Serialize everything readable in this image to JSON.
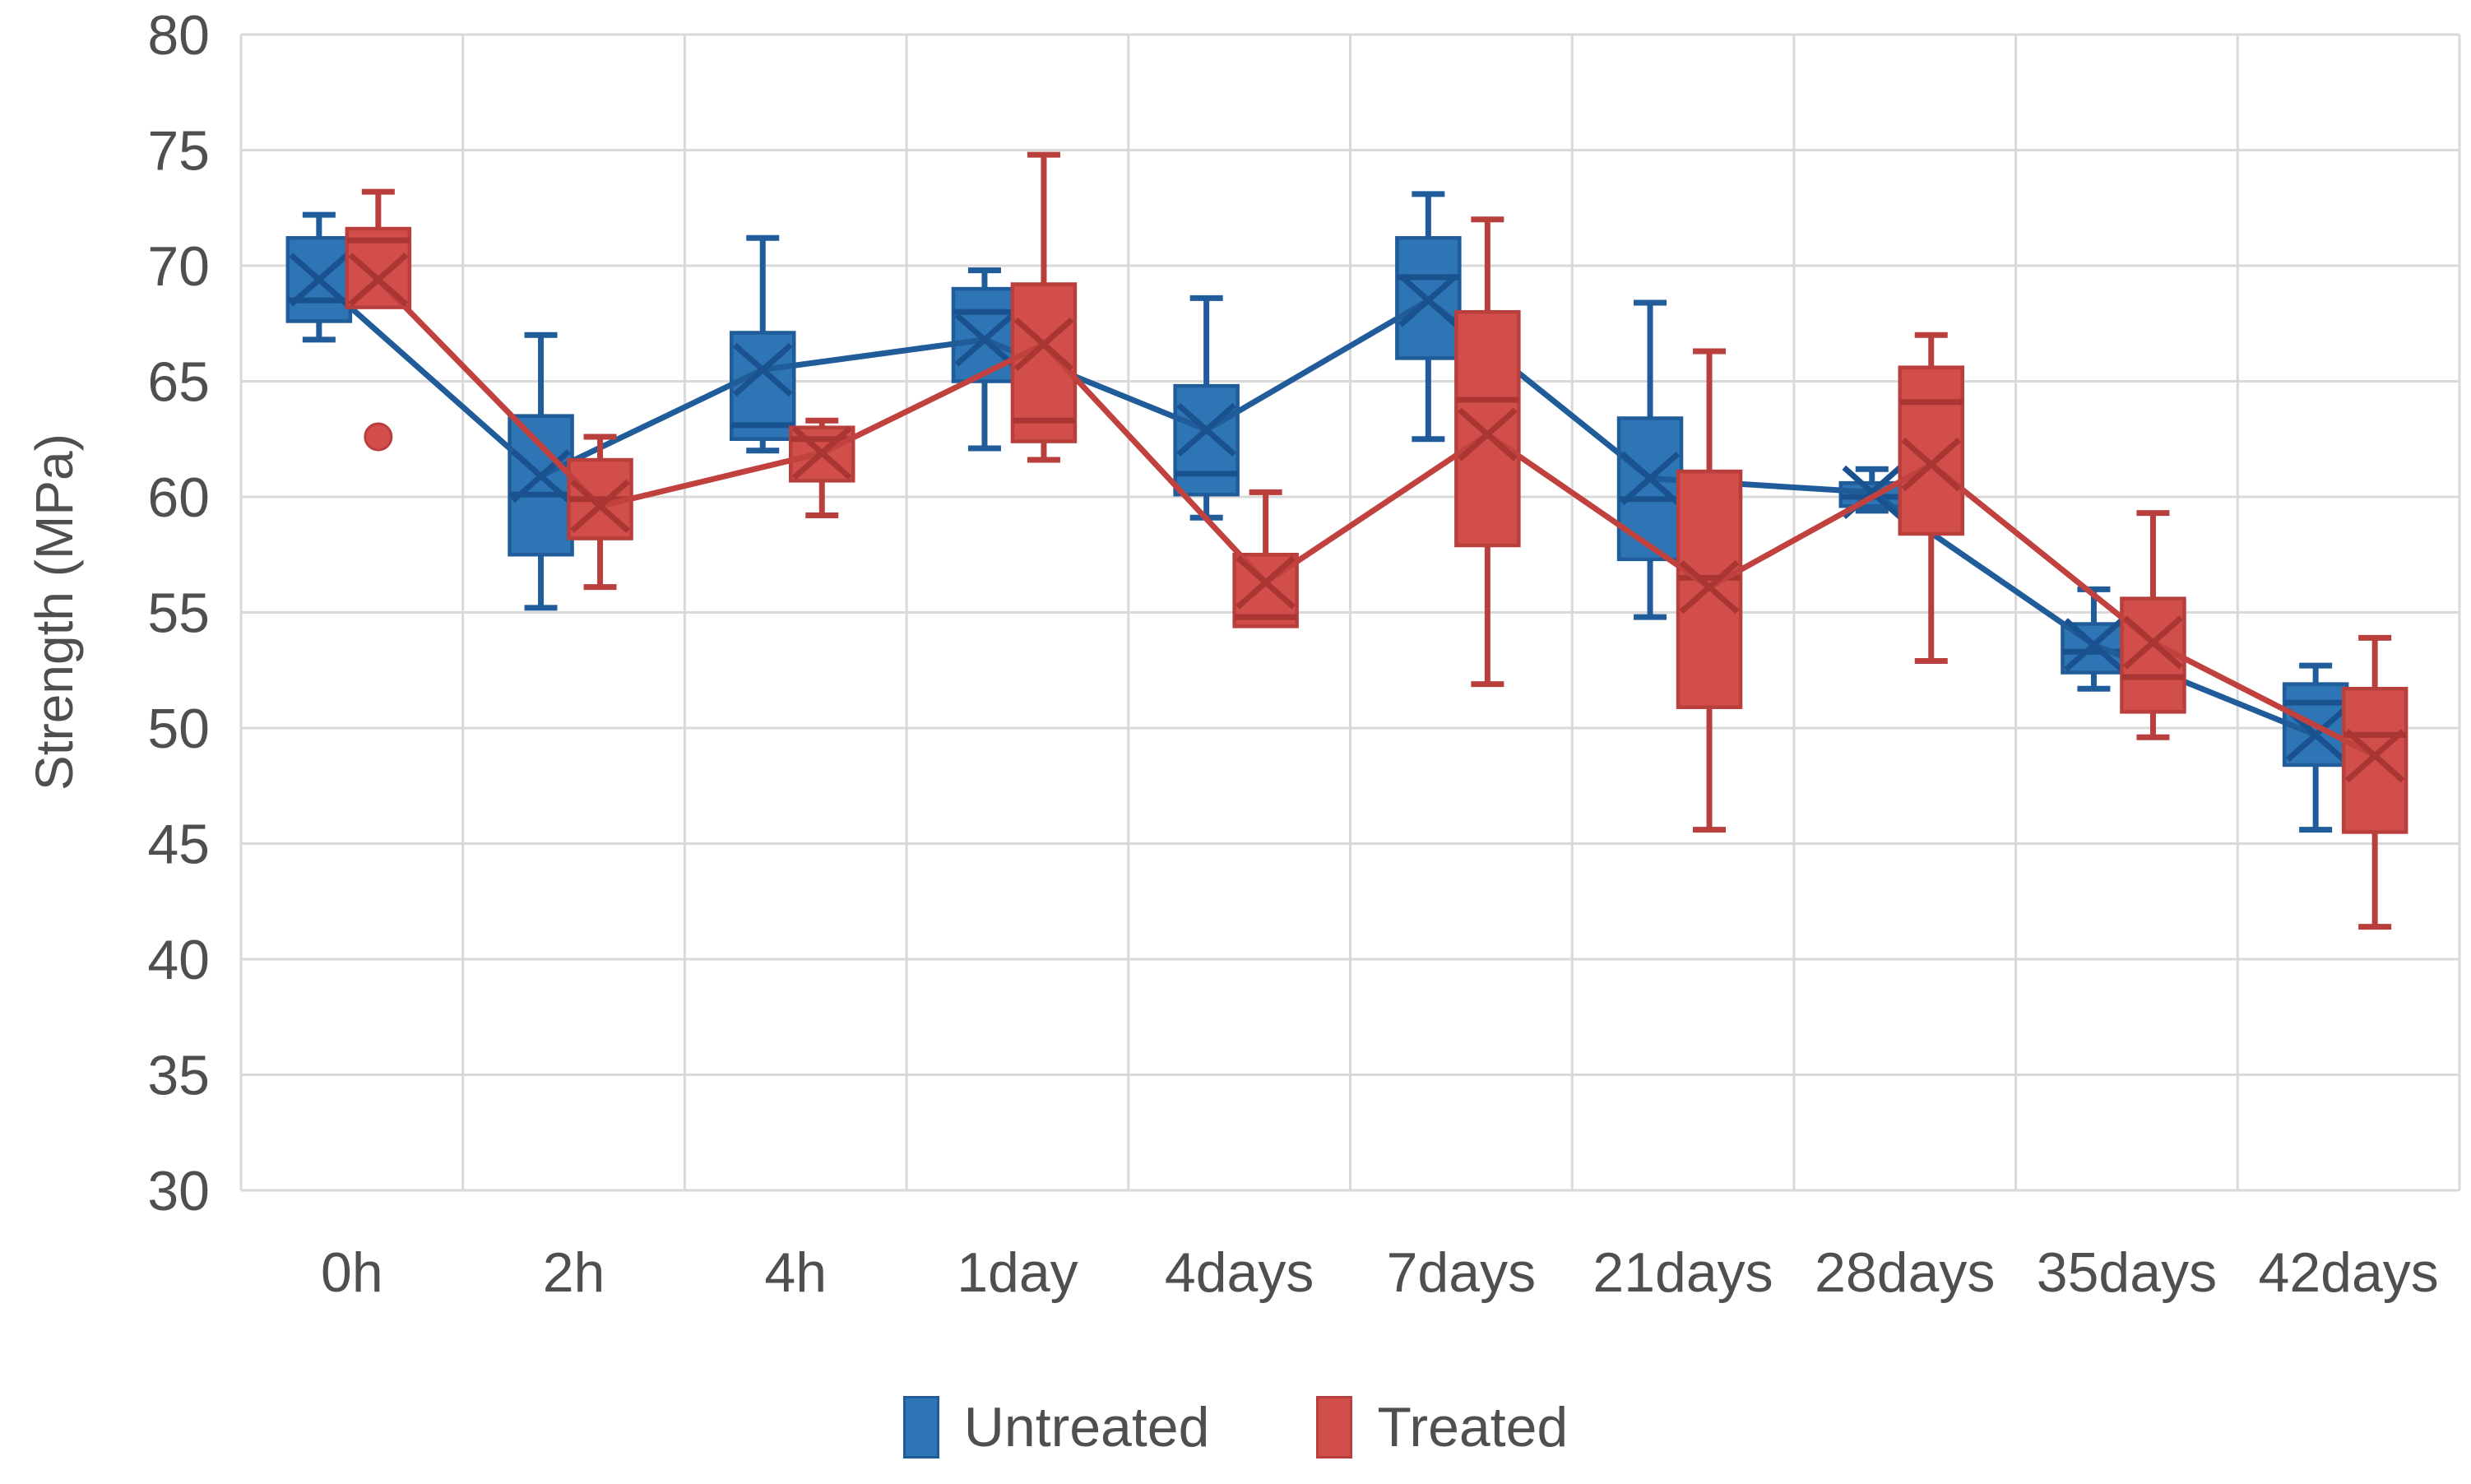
{
  "page": {
    "background": "#ffffff"
  },
  "chart_data": {
    "type": "box",
    "subtype": "grouped-boxplot-with-mean-lines",
    "title": "",
    "xlabel": "",
    "ylabel": "Strength (MPa)",
    "ylim": [
      30,
      80
    ],
    "yticks": [
      30,
      35,
      40,
      45,
      50,
      55,
      60,
      65,
      70,
      75,
      80
    ],
    "grid": "horizontal-and-vertical",
    "legend_position": "bottom",
    "categories": [
      "0h",
      "2h",
      "4h",
      "1day",
      "4days",
      "7days",
      "21days",
      "28days",
      "35days",
      "42days"
    ],
    "colors": {
      "grid": "#d9d9d9",
      "text": "#4f4f4f",
      "untreated_fill": "#2e75b6",
      "untreated_stroke": "#1f5c99",
      "untreated_marker": "#1a5290",
      "treated_fill": "#d14e4b",
      "treated_stroke": "#b83f3c",
      "treated_marker": "#a93633"
    },
    "legend": [
      {
        "label": "Untreated",
        "color": "#2e75b6",
        "border": "#1f5c99"
      },
      {
        "label": "Treated",
        "color": "#d14e4b",
        "border": "#b83f3c"
      }
    ],
    "series": [
      {
        "name": "Untreated",
        "fill": "#2e75b6",
        "stroke": "#1f5c99",
        "marker": "#1a5290",
        "line": "#1f5c99",
        "boxes": [
          {
            "category": "0h",
            "whisker_low": 66.8,
            "q1": 67.6,
            "median": 68.5,
            "mean": 69.4,
            "q3": 71.2,
            "whisker_high": 72.2,
            "outliers": []
          },
          {
            "category": "2h",
            "whisker_low": 55.2,
            "q1": 57.5,
            "median": 60.1,
            "mean": 60.9,
            "q3": 63.5,
            "whisker_high": 67.0,
            "outliers": []
          },
          {
            "category": "4h",
            "whisker_low": 62.0,
            "q1": 62.5,
            "median": 63.1,
            "mean": 65.5,
            "q3": 67.1,
            "whisker_high": 71.2,
            "outliers": []
          },
          {
            "category": "1day",
            "whisker_low": 62.1,
            "q1": 65.0,
            "median": 68.0,
            "mean": 66.8,
            "q3": 69.0,
            "whisker_high": 69.8,
            "outliers": []
          },
          {
            "category": "4days",
            "whisker_low": 59.1,
            "q1": 60.1,
            "median": 61.0,
            "mean": 62.9,
            "q3": 64.8,
            "whisker_high": 68.6,
            "outliers": []
          },
          {
            "category": "7days",
            "whisker_low": 62.5,
            "q1": 66.0,
            "median": 69.5,
            "mean": 68.5,
            "q3": 71.2,
            "whisker_high": 73.1,
            "outliers": []
          },
          {
            "category": "21days",
            "whisker_low": 54.8,
            "q1": 57.3,
            "median": 59.9,
            "mean": 60.8,
            "q3": 63.4,
            "whisker_high": 68.4,
            "outliers": []
          },
          {
            "category": "28days",
            "whisker_low": 59.4,
            "q1": 59.6,
            "median": 60.0,
            "mean": 60.2,
            "q3": 60.6,
            "whisker_high": 61.2,
            "outliers": []
          },
          {
            "category": "35days",
            "whisker_low": 51.7,
            "q1": 52.4,
            "median": 53.3,
            "mean": 53.6,
            "q3": 54.5,
            "whisker_high": 56.0,
            "outliers": []
          },
          {
            "category": "42days",
            "whisker_low": 45.6,
            "q1": 48.4,
            "median": 51.1,
            "mean": 49.7,
            "q3": 51.9,
            "whisker_high": 52.7,
            "outliers": []
          }
        ]
      },
      {
        "name": "Treated",
        "fill": "#d14e4b",
        "stroke": "#b83f3c",
        "marker": "#a93633",
        "line": "#c0413e",
        "boxes": [
          {
            "category": "0h",
            "whisker_low": null,
            "q1": 68.2,
            "median": 71.1,
            "mean": 69.4,
            "q3": 71.6,
            "whisker_high": 73.2,
            "outliers": [
              62.6
            ]
          },
          {
            "category": "2h",
            "whisker_low": 56.1,
            "q1": 58.2,
            "median": 59.9,
            "mean": 59.6,
            "q3": 61.6,
            "whisker_high": 62.6,
            "outliers": []
          },
          {
            "category": "4h",
            "whisker_low": 59.2,
            "q1": 60.7,
            "median": 62.5,
            "mean": 61.9,
            "q3": 63.0,
            "whisker_high": 63.3,
            "outliers": []
          },
          {
            "category": "1day",
            "whisker_low": 61.6,
            "q1": 62.4,
            "median": 63.3,
            "mean": 66.6,
            "q3": 69.2,
            "whisker_high": 74.8,
            "outliers": []
          },
          {
            "category": "4days",
            "whisker_low": null,
            "q1": 54.4,
            "median": 54.8,
            "mean": 56.3,
            "q3": 57.5,
            "whisker_high": 60.2,
            "outliers": []
          },
          {
            "category": "7days",
            "whisker_low": 51.9,
            "q1": 57.9,
            "median": 64.2,
            "mean": 62.7,
            "q3": 68.0,
            "whisker_high": 72.0,
            "outliers": []
          },
          {
            "category": "21days",
            "whisker_low": 45.6,
            "q1": 50.9,
            "median": 56.5,
            "mean": 56.1,
            "q3": 61.1,
            "whisker_high": 66.3,
            "outliers": []
          },
          {
            "category": "28days",
            "whisker_low": 52.9,
            "q1": 58.4,
            "median": 64.1,
            "mean": 61.4,
            "q3": 65.6,
            "whisker_high": 67.0,
            "outliers": []
          },
          {
            "category": "35days",
            "whisker_low": 49.6,
            "q1": 50.7,
            "median": 52.2,
            "mean": 53.7,
            "q3": 55.6,
            "whisker_high": 59.3,
            "outliers": []
          },
          {
            "category": "42days",
            "whisker_low": 41.4,
            "q1": 45.5,
            "median": 49.7,
            "mean": 48.8,
            "q3": 51.7,
            "whisker_high": 53.9,
            "outliers": []
          }
        ]
      }
    ]
  }
}
